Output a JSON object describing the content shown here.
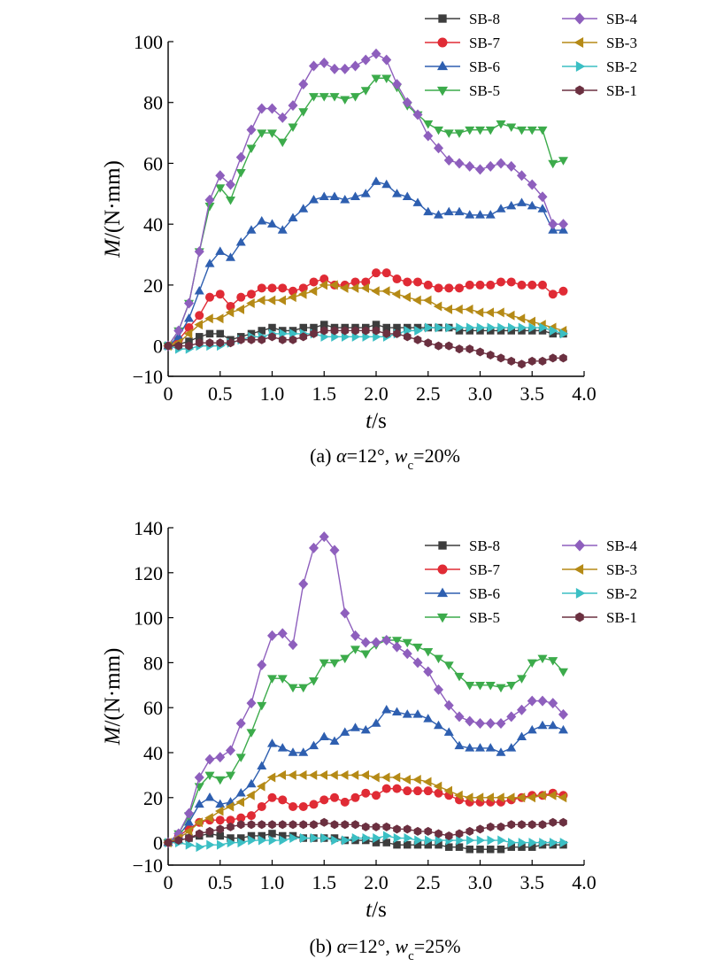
{
  "chart_data": [
    {
      "type": "line",
      "caption": {
        "prefix": "(a) ",
        "greek": "α",
        "mid": "=12°, ",
        "w": "w",
        "sub": "c",
        "suffix": "=20%"
      },
      "xlabel": {
        "var": "t",
        "unit": "/s"
      },
      "ylabel": {
        "var": "M",
        "unit": "/(N·mm)"
      },
      "xlim": [
        0,
        4.0
      ],
      "ylim": [
        -10,
        100
      ],
      "xticks": [
        "0",
        "0.5",
        "1.0",
        "1.5",
        "2.0",
        "2.5",
        "3.0",
        "3.5",
        "4.0"
      ],
      "yticks": [
        "−10",
        "0",
        "20",
        "40",
        "60",
        "80",
        "100"
      ],
      "grid": false,
      "legend_position": "top-right",
      "x": [
        0,
        0.1,
        0.2,
        0.3,
        0.4,
        0.5,
        0.6,
        0.7,
        0.8,
        0.9,
        1.0,
        1.1,
        1.2,
        1.3,
        1.4,
        1.5,
        1.6,
        1.7,
        1.8,
        1.9,
        2.0,
        2.1,
        2.2,
        2.3,
        2.4,
        2.5,
        2.6,
        2.7,
        2.8,
        2.9,
        3.0,
        3.1,
        3.2,
        3.3,
        3.4,
        3.5,
        3.6,
        3.7,
        3.8
      ],
      "series": [
        {
          "name": "SB-8",
          "color": "#3d3d3d",
          "marker": "square",
          "values": [
            0,
            0.5,
            1.5,
            3,
            4,
            4,
            2,
            3,
            4,
            5,
            6,
            5,
            5,
            6,
            6,
            7,
            6,
            6,
            6,
            6,
            7,
            6,
            6,
            6,
            6,
            6,
            6,
            6,
            5,
            5,
            5,
            5,
            5,
            5,
            5,
            5,
            5,
            4,
            4
          ]
        },
        {
          "name": "SB-7",
          "color": "#e02b35",
          "marker": "circle",
          "values": [
            0,
            2,
            6,
            10,
            16,
            17,
            13,
            16,
            17,
            19,
            19,
            19,
            18,
            19,
            21,
            22,
            20,
            20,
            21,
            21,
            24,
            24,
            22,
            21,
            21,
            20,
            19,
            19,
            19,
            20,
            20,
            20,
            21,
            21,
            20,
            20,
            20,
            17,
            18
          ]
        },
        {
          "name": "SB-6",
          "color": "#2e5fb0",
          "marker": "triangle-up",
          "values": [
            0,
            3,
            9,
            18,
            27,
            31,
            29,
            34,
            38,
            41,
            40,
            38,
            42,
            45,
            48,
            49,
            49,
            48,
            49,
            50,
            54,
            53,
            50,
            49,
            47,
            44,
            43,
            44,
            44,
            43,
            43,
            43,
            45,
            46,
            47,
            46,
            45,
            38,
            38
          ]
        },
        {
          "name": "SB-5",
          "color": "#3cab4b",
          "marker": "triangle-down",
          "values": [
            0,
            5,
            14,
            31,
            46,
            52,
            48,
            57,
            65,
            70,
            70,
            67,
            72,
            77,
            82,
            82,
            82,
            81,
            82,
            84,
            88,
            88,
            85,
            79,
            76,
            73,
            71,
            70,
            70,
            71,
            71,
            71,
            73,
            72,
            71,
            71,
            71,
            60,
            61
          ]
        },
        {
          "name": "SB-4",
          "color": "#8e5fbd",
          "marker": "diamond",
          "values": [
            0,
            5,
            14,
            31,
            48,
            56,
            53,
            62,
            71,
            78,
            78,
            75,
            79,
            86,
            92,
            93,
            91,
            91,
            92,
            94,
            96,
            94,
            86,
            80,
            76,
            69,
            65,
            61,
            60,
            59,
            58,
            59,
            60,
            59,
            56,
            53,
            49,
            40,
            40
          ]
        },
        {
          "name": "SB-3",
          "color": "#b58a16",
          "marker": "triangle-left",
          "values": [
            0,
            1,
            4,
            7,
            9,
            9,
            11,
            12,
            14,
            15,
            15,
            15,
            16,
            17,
            18,
            20,
            20,
            19,
            19,
            19,
            18,
            18,
            17,
            16,
            15,
            15,
            13,
            12,
            12,
            12,
            11,
            11,
            11,
            10,
            9,
            8,
            7,
            6,
            5
          ]
        },
        {
          "name": "SB-2",
          "color": "#3bbfc4",
          "marker": "triangle-right",
          "values": [
            0,
            -1,
            -1,
            0,
            0,
            0,
            1,
            2,
            3,
            3,
            4,
            4,
            4,
            4,
            4,
            3,
            3,
            3,
            3,
            3,
            3,
            3,
            4,
            5,
            5,
            6,
            6,
            6,
            6,
            6,
            6,
            6,
            6,
            6,
            6,
            6,
            6,
            5,
            4
          ]
        },
        {
          "name": "SB-1",
          "color": "#6b3040",
          "marker": "hexagon",
          "values": [
            0,
            0,
            0,
            1,
            1,
            1,
            1,
            2,
            2,
            2,
            3,
            2,
            2,
            3,
            4,
            5,
            5,
            5,
            5,
            5,
            5,
            4,
            4,
            3,
            2,
            1,
            0,
            0,
            -1,
            -1,
            -2,
            -3,
            -4,
            -5,
            -6,
            -5,
            -5,
            -4,
            -4
          ]
        }
      ]
    },
    {
      "type": "line",
      "caption": {
        "prefix": "(b) ",
        "greek": "α",
        "mid": "=12°, ",
        "w": "w",
        "sub": "c",
        "suffix": "=25%"
      },
      "xlabel": {
        "var": "t",
        "unit": "/s"
      },
      "ylabel": {
        "var": "M",
        "unit": "/(N·mm)"
      },
      "xlim": [
        0,
        4.0
      ],
      "ylim": [
        -10,
        140
      ],
      "xticks": [
        "0",
        "0.5",
        "1.0",
        "1.5",
        "2.0",
        "2.5",
        "3.0",
        "3.5",
        "4.0"
      ],
      "yticks": [
        "−10",
        "0",
        "20",
        "40",
        "60",
        "80",
        "100",
        "120",
        "140"
      ],
      "grid": false,
      "legend_position": "top-right",
      "x": [
        0,
        0.1,
        0.2,
        0.3,
        0.4,
        0.5,
        0.6,
        0.7,
        0.8,
        0.9,
        1.0,
        1.1,
        1.2,
        1.3,
        1.4,
        1.5,
        1.6,
        1.7,
        1.8,
        1.9,
        2.0,
        2.1,
        2.2,
        2.3,
        2.4,
        2.5,
        2.6,
        2.7,
        2.8,
        2.9,
        3.0,
        3.1,
        3.2,
        3.3,
        3.4,
        3.5,
        3.6,
        3.7,
        3.8
      ],
      "series": [
        {
          "name": "SB-8",
          "color": "#3d3d3d",
          "marker": "square",
          "values": [
            0,
            1,
            2,
            3,
            4,
            3,
            2,
            2,
            3,
            3,
            4,
            3,
            3,
            2,
            2,
            2,
            2,
            1,
            1,
            1,
            0,
            0,
            -1,
            -1,
            -1,
            -1,
            -1,
            -2,
            -2,
            -3,
            -3,
            -3,
            -3,
            -2,
            -2,
            -2,
            -1,
            -1,
            -1
          ]
        },
        {
          "name": "SB-7",
          "color": "#e02b35",
          "marker": "circle",
          "values": [
            0,
            3,
            6,
            9,
            10,
            10,
            10,
            11,
            12,
            16,
            20,
            19,
            16,
            16,
            17,
            19,
            20,
            18,
            20,
            22,
            21,
            24,
            24,
            23,
            23,
            23,
            22,
            21,
            19,
            18,
            18,
            18,
            18,
            19,
            20,
            21,
            21,
            22,
            21
          ]
        },
        {
          "name": "SB-6",
          "color": "#2e5fb0",
          "marker": "triangle-up",
          "values": [
            0,
            3,
            9,
            17,
            20,
            17,
            18,
            22,
            26,
            34,
            44,
            42,
            40,
            40,
            43,
            47,
            45,
            49,
            51,
            50,
            53,
            59,
            58,
            57,
            57,
            55,
            52,
            49,
            43,
            42,
            42,
            42,
            40,
            42,
            47,
            50,
            52,
            52,
            50
          ]
        },
        {
          "name": "SB-5",
          "color": "#3cab4b",
          "marker": "triangle-down",
          "values": [
            0,
            4,
            12,
            25,
            30,
            28,
            30,
            38,
            49,
            61,
            73,
            73,
            69,
            69,
            72,
            80,
            80,
            82,
            86,
            84,
            88,
            90,
            90,
            89,
            87,
            85,
            82,
            79,
            74,
            70,
            70,
            70,
            69,
            70,
            73,
            80,
            82,
            81,
            76
          ]
        },
        {
          "name": "SB-4",
          "color": "#8e5fbd",
          "marker": "diamond",
          "values": [
            0,
            4,
            13,
            29,
            37,
            38,
            41,
            53,
            62,
            79,
            92,
            93,
            88,
            115,
            131,
            136,
            130,
            102,
            92,
            89,
            89,
            90,
            87,
            84,
            80,
            76,
            68,
            61,
            56,
            54,
            53,
            53,
            53,
            56,
            59,
            63,
            63,
            62,
            57
          ]
        },
        {
          "name": "SB-3",
          "color": "#b58a16",
          "marker": "triangle-left",
          "values": [
            0,
            2,
            5,
            9,
            11,
            14,
            16,
            18,
            21,
            25,
            29,
            30,
            30,
            30,
            30,
            30,
            30,
            30,
            30,
            30,
            29,
            29,
            29,
            28,
            28,
            27,
            25,
            23,
            21,
            20,
            20,
            20,
            20,
            20,
            20,
            20,
            21,
            21,
            20
          ]
        },
        {
          "name": "SB-2",
          "color": "#3bbfc4",
          "marker": "triangle-right",
          "values": [
            0,
            0,
            -1,
            -2,
            -1,
            -1,
            0,
            0,
            1,
            1,
            1,
            1,
            2,
            2,
            2,
            2,
            1,
            1,
            2,
            2,
            2,
            3,
            2,
            2,
            1,
            1,
            1,
            1,
            1,
            1,
            1,
            1,
            1,
            0,
            0,
            0,
            0,
            0,
            0
          ]
        },
        {
          "name": "SB-1",
          "color": "#6b3040",
          "marker": "hexagon",
          "values": [
            0,
            1,
            2,
            4,
            5,
            6,
            7,
            8,
            8,
            8,
            8,
            8,
            8,
            8,
            8,
            9,
            8,
            8,
            8,
            7,
            7,
            7,
            6,
            6,
            5,
            5,
            4,
            3,
            4,
            5,
            6,
            7,
            7,
            8,
            8,
            8,
            8,
            9,
            9
          ]
        }
      ]
    }
  ]
}
